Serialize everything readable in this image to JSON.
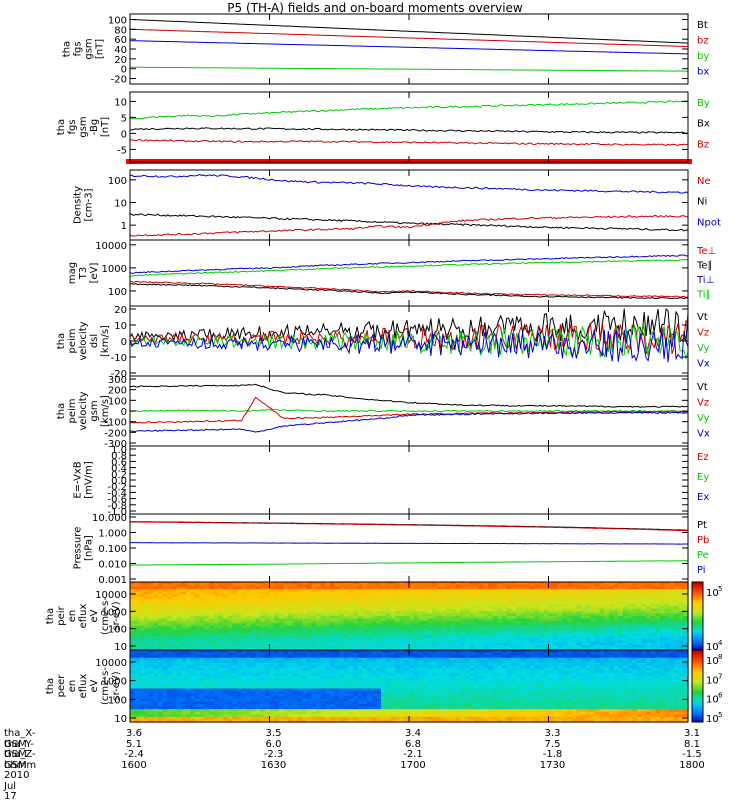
{
  "title": "P5 (TH-A) fields and on-board moments overview",
  "chart_data": [
    {
      "type": "line",
      "ylabel": [
        "tha",
        "fgs",
        "gsm",
        "[nT]"
      ],
      "yticks": [
        "100",
        "80",
        "60",
        "40",
        "20",
        "0",
        "-20"
      ],
      "ylim": [
        -25,
        105
      ],
      "legend": [
        {
          "label": "Bt",
          "color": "#000000"
        },
        {
          "label": "bz",
          "color": "#cc0000"
        },
        {
          "label": "by",
          "color": "#00cc00"
        },
        {
          "label": "bx",
          "color": "#0000cc"
        }
      ],
      "series": [
        {
          "name": "Bt",
          "color": "#000000",
          "x": [
            1600,
            1800
          ],
          "y": [
            100,
            52
          ]
        },
        {
          "name": "bz",
          "color": "#cc0000",
          "x": [
            1600,
            1800
          ],
          "y": [
            80,
            45
          ]
        },
        {
          "name": "bx",
          "color": "#0000cc",
          "x": [
            1600,
            1800
          ],
          "y": [
            57,
            30
          ]
        },
        {
          "name": "by",
          "color": "#00cc00",
          "x": [
            1600,
            1800
          ],
          "y": [
            3,
            -5
          ]
        }
      ]
    },
    {
      "type": "line",
      "ylabel": [
        "tha",
        "fgs",
        "gsm",
        "-Bg",
        "[nT]"
      ],
      "yticks": [
        "10",
        "5",
        "0",
        "-5"
      ],
      "ylim": [
        -8,
        12
      ],
      "legend": [
        {
          "label": "By",
          "color": "#00cc00"
        },
        {
          "label": "Bx",
          "color": "#000000"
        },
        {
          "label": "Bz",
          "color": "#cc0000"
        }
      ],
      "series": [
        {
          "name": "By",
          "color": "#00cc00",
          "x": [
            1600,
            1610,
            1620,
            1630,
            1640,
            1660,
            1680,
            1700,
            1720,
            1740,
            1760,
            1780,
            1800
          ],
          "y": [
            4.5,
            5.2,
            5.6,
            5.4,
            6.0,
            6.8,
            7.5,
            8.0,
            8.4,
            8.8,
            9.2,
            9.6,
            10.0
          ]
        },
        {
          "name": "Bx",
          "color": "#000000",
          "x": [
            1600,
            1620,
            1640,
            1660,
            1680,
            1700,
            1720,
            1740,
            1760,
            1780,
            1800
          ],
          "y": [
            1.3,
            1.6,
            1.5,
            1.4,
            1.2,
            1.0,
            0.8,
            0.6,
            0.4,
            0.3,
            0.2
          ]
        },
        {
          "name": "Bz",
          "color": "#cc0000",
          "x": [
            1600,
            1620,
            1640,
            1660,
            1680,
            1700,
            1720,
            1740,
            1760,
            1780,
            1800
          ],
          "y": [
            -2.0,
            -2.4,
            -2.6,
            -2.5,
            -2.6,
            -2.8,
            -3.0,
            -3.2,
            -3.3,
            -3.5,
            -3.6
          ]
        }
      ]
    },
    {
      "type": "line",
      "log": true,
      "ylabel": [
        "Density",
        "[cm-3]"
      ],
      "yticks": [
        "100",
        "10",
        "1"
      ],
      "ylim": [
        0.3,
        200
      ],
      "legend": [
        {
          "label": "Ne",
          "color": "#cc0000"
        },
        {
          "label": "Ni",
          "color": "#000000"
        },
        {
          "label": "Npot",
          "color": "#0000cc"
        }
      ],
      "series": [
        {
          "name": "Npot",
          "color": "#0000cc",
          "x": [
            1605,
            1615,
            1625,
            1635,
            1645,
            1655,
            1665,
            1675,
            1685,
            1695,
            1705,
            1720,
            1735,
            1750,
            1765,
            1780,
            1800
          ],
          "y": [
            150,
            140,
            160,
            150,
            120,
            90,
            80,
            75,
            70,
            60,
            50,
            45,
            40,
            35,
            33,
            30,
            28
          ]
        },
        {
          "name": "Ni",
          "color": "#000000",
          "x": [
            1600,
            1650,
            1700,
            1750,
            1800
          ],
          "y": [
            3.0,
            2.0,
            1.2,
            0.8,
            0.6
          ]
        },
        {
          "name": "Ne",
          "color": "#cc0000",
          "x": [
            1600,
            1620,
            1640,
            1660,
            1680,
            1690,
            1700,
            1710,
            1720,
            1740,
            1760,
            1780,
            1800
          ],
          "y": [
            0.35,
            0.4,
            0.5,
            0.6,
            0.7,
            0.9,
            0.8,
            1.2,
            1.6,
            2.0,
            2.2,
            2.4,
            2.5
          ]
        }
      ]
    },
    {
      "type": "line",
      "log": true,
      "ylabel": [
        "mag",
        "T3",
        "[eV]"
      ],
      "yticks": [
        "10000",
        "1000",
        "100"
      ],
      "ylim": [
        30,
        12000
      ],
      "legend": [
        {
          "label": "Te⊥",
          "color": "#cc0000"
        },
        {
          "label": "Te∥",
          "color": "#000000"
        },
        {
          "label": "Ti⊥",
          "color": "#0000cc"
        },
        {
          "label": "Ti∥",
          "color": "#00cc00"
        }
      ],
      "series": [
        {
          "name": "Ti⊥",
          "color": "#0000cc",
          "x": [
            1600,
            1650,
            1700,
            1750,
            1800
          ],
          "y": [
            600,
            1000,
            1700,
            2500,
            3500
          ]
        },
        {
          "name": "Ti∥",
          "color": "#00cc00",
          "x": [
            1600,
            1650,
            1700,
            1750,
            1800
          ],
          "y": [
            450,
            750,
            1200,
            1700,
            2200
          ]
        },
        {
          "name": "Te⊥",
          "color": "#cc0000",
          "x": [
            1600,
            1620,
            1640,
            1660,
            1680,
            1690,
            1700,
            1720,
            1740,
            1760,
            1780,
            1800
          ],
          "y": [
            250,
            220,
            180,
            140,
            110,
            90,
            100,
            80,
            70,
            65,
            60,
            55
          ]
        },
        {
          "name": "Te∥",
          "color": "#000000",
          "x": [
            1600,
            1620,
            1640,
            1660,
            1680,
            1690,
            1700,
            1720,
            1740,
            1760,
            1780,
            1800
          ],
          "y": [
            200,
            180,
            150,
            120,
            95,
            80,
            90,
            70,
            60,
            55,
            50,
            48
          ]
        }
      ]
    },
    {
      "type": "line",
      "ylabel": [
        "tha",
        "peim",
        "velocity",
        "dsl",
        "[km/s]"
      ],
      "yticks": [
        "20",
        "10",
        "0",
        "-10",
        "-20"
      ],
      "ylim": [
        -20,
        20
      ],
      "legend": [
        {
          "label": "Vt",
          "color": "#000000"
        },
        {
          "label": "Vz",
          "color": "#cc0000"
        },
        {
          "label": "Vy",
          "color": "#00cc00"
        },
        {
          "label": "Vx",
          "color": "#0000cc"
        }
      ],
      "series": [
        {
          "name": "Vt",
          "color": "#000000",
          "x": [
            1600,
            1650,
            1700,
            1750,
            1800
          ],
          "y": [
            3,
            5,
            7,
            9,
            11
          ]
        },
        {
          "name": "Vz",
          "color": "#cc0000",
          "x": [
            1600,
            1650,
            1700,
            1750,
            1800
          ],
          "y": [
            1,
            1.5,
            2,
            2,
            2.5
          ]
        },
        {
          "name": "Vy",
          "color": "#00cc00",
          "x": [
            1600,
            1650,
            1700,
            1750,
            1800
          ],
          "y": [
            0,
            0,
            -1,
            -1,
            -1
          ]
        },
        {
          "name": "Vx",
          "color": "#0000cc",
          "x": [
            1600,
            1650,
            1700,
            1750,
            1800
          ],
          "y": [
            -1,
            -1.5,
            -2,
            -2.5,
            -3
          ]
        }
      ]
    },
    {
      "type": "line",
      "ylabel": [
        "tha",
        "peim",
        "velocity",
        "gsm",
        "[km/s]"
      ],
      "yticks": [
        "300",
        "200",
        "100",
        "0",
        "-100",
        "-200",
        "-300"
      ],
      "ylim": [
        -300,
        300
      ],
      "legend": [
        {
          "label": "Vt",
          "color": "#000000"
        },
        {
          "label": "Vz",
          "color": "#cc0000"
        },
        {
          "label": "Vy",
          "color": "#00cc00"
        },
        {
          "label": "Vx",
          "color": "#0000cc"
        }
      ],
      "series": [
        {
          "name": "Vt",
          "color": "#000000",
          "x": [
            1600,
            1620,
            1640,
            1645,
            1655,
            1670,
            1685,
            1700,
            1720,
            1740,
            1760,
            1780,
            1800
          ],
          "y": [
            230,
            235,
            240,
            250,
            170,
            150,
            110,
            80,
            55,
            50,
            45,
            40,
            40
          ]
        },
        {
          "name": "Vy",
          "color": "#00cc00",
          "x": [
            1600,
            1620,
            1640,
            1650,
            1670,
            1700,
            1740,
            1800
          ],
          "y": [
            0,
            5,
            0,
            10,
            0,
            0,
            0,
            0
          ]
        },
        {
          "name": "Vz",
          "color": "#cc0000",
          "x": [
            1600,
            1620,
            1640,
            1645,
            1655,
            1670,
            1690,
            1700,
            1730,
            1760,
            1800
          ],
          "y": [
            -110,
            -100,
            -90,
            130,
            -70,
            -60,
            -40,
            -30,
            -20,
            -10,
            -5
          ]
        },
        {
          "name": "Vx",
          "color": "#0000cc",
          "x": [
            1600,
            1620,
            1640,
            1645,
            1655,
            1670,
            1690,
            1700,
            1730,
            1760,
            1800
          ],
          "y": [
            -190,
            -180,
            -170,
            -200,
            -140,
            -110,
            -70,
            -40,
            -25,
            -20,
            -15
          ]
        }
      ]
    },
    {
      "type": "line",
      "ylabel": [
        "E=-VxB",
        "[mV/m]"
      ],
      "yticks": [
        "1.0",
        "0.8",
        "0.6",
        "0.4",
        "0.2",
        "0.0",
        "-0.2",
        "-0.4",
        "-0.6",
        "-0.8",
        "-1.0"
      ],
      "ylim": [
        -1.0,
        1.0
      ],
      "legend": [
        {
          "label": "Ez",
          "color": "#cc0000"
        },
        {
          "label": "Ey",
          "color": "#00cc00"
        },
        {
          "label": "Ex",
          "color": "#0000cc"
        }
      ],
      "series": []
    },
    {
      "type": "line",
      "log": true,
      "ylabel": [
        "Pressure",
        "[nPa]"
      ],
      "yticks": [
        "10.000",
        "1.000",
        "0.100",
        "0.010",
        "0.001"
      ],
      "ylim": [
        0.001,
        10
      ],
      "legend": [
        {
          "label": "Pt",
          "color": "#000000"
        },
        {
          "label": "Pb",
          "color": "#cc0000"
        },
        {
          "label": "Pe",
          "color": "#00cc00"
        },
        {
          "label": "Pi",
          "color": "#0000cc"
        }
      ],
      "series": [
        {
          "name": "Pt",
          "color": "#000000",
          "x": [
            1600,
            1800
          ],
          "y": [
            5.0,
            1.4
          ]
        },
        {
          "name": "Pb",
          "color": "#cc0000",
          "x": [
            1600,
            1800
          ],
          "y": [
            4.8,
            1.3
          ]
        },
        {
          "name": "Pi",
          "color": "#0000cc",
          "x": [
            1600,
            1800
          ],
          "y": [
            0.22,
            0.18
          ]
        },
        {
          "name": "Pe",
          "color": "#00cc00",
          "x": [
            1600,
            1650,
            1700,
            1750,
            1800
          ],
          "y": [
            0.008,
            0.009,
            0.011,
            0.013,
            0.015
          ]
        }
      ]
    },
    {
      "type": "heatmap",
      "ylabel": [
        "tha",
        "peir",
        "en",
        "eflux",
        "eV",
        "(cm2-s-",
        "sr-eV)"
      ],
      "yticks": [
        "10000",
        "1000",
        "100",
        "10"
      ],
      "colorbar_ticks": [
        "10^5",
        "10^4"
      ],
      "colorbar_sup": [
        "10",
        "5",
        "10",
        "4"
      ]
    },
    {
      "type": "heatmap",
      "ylabel": [
        "tha",
        "peer",
        "en",
        "eflux",
        "eV",
        "(cm2-s-",
        "sr-eV)"
      ],
      "yticks": [
        "10000",
        "1000",
        "100",
        "10"
      ],
      "colorbar_ticks": [
        "10^8",
        "10^7",
        "10^6",
        "10^5"
      ],
      "colorbar_sup": [
        "10",
        "8",
        "10",
        "7",
        "10",
        "6",
        "10",
        "5"
      ]
    }
  ],
  "footer": {
    "rows": [
      {
        "label": "tha_X-GSM",
        "values": [
          "3.6",
          "3.5",
          "3.4",
          "3.3",
          "3.1"
        ]
      },
      {
        "label": "tha_Y-GSM",
        "values": [
          "5.1",
          "6.0",
          "6.8",
          "7.5",
          "8.1"
        ]
      },
      {
        "label": "tha_Z-GSM",
        "values": [
          "-2.4",
          "-2.3",
          "-2.1",
          "-1.8",
          "-1.5"
        ]
      },
      {
        "label": "hhmm",
        "values": [
          "1600",
          "1630",
          "1700",
          "1730",
          "1800"
        ]
      }
    ],
    "date": "2010 Jul 17"
  }
}
